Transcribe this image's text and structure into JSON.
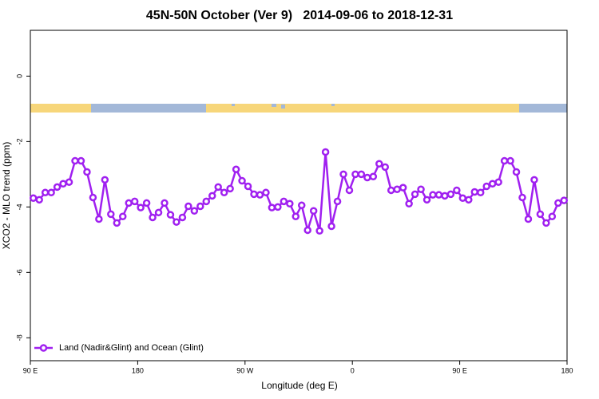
{
  "chart_data": {
    "type": "line",
    "title": "45N-50N October (Ver 9)   2014-09-06 to 2018-12-31",
    "x_label": "Longitude (deg E)",
    "y_label": "XCO2 - MLO trend (ppm)",
    "xlim": [
      90,
      540
    ],
    "ylim": [
      -8.7,
      1.4
    ],
    "xticks": [
      {
        "value": 90,
        "label": "90 E"
      },
      180,
      {
        "value": 270,
        "label": "90 W"
      },
      {
        "value": 360,
        "label": "0"
      },
      {
        "value": 450,
        "label": "90 E"
      },
      {
        "value": 540,
        "label": "180"
      }
    ],
    "yticks": [
      0,
      -2,
      -4,
      -6,
      -8
    ],
    "legend": "bottom-left",
    "x": [
      92.5,
      97.5,
      102.5,
      107.5,
      112.5,
      117.5,
      122.5,
      127.5,
      132.5,
      137.5,
      142.5,
      147.5,
      152.5,
      157.5,
      162.5,
      167.5,
      172.5,
      177.5,
      182.5,
      187.5,
      192.5,
      197.5,
      202.5,
      207.5,
      212.5,
      217.5,
      222.5,
      227.5,
      232.5,
      237.5,
      242.5,
      247.5,
      252.5,
      257.5,
      262.5,
      267.5,
      272.5,
      277.5,
      282.5,
      287.5,
      292.5,
      297.5,
      302.5,
      307.5,
      312.5,
      317.5,
      322.5,
      327.5,
      332.5,
      337.5,
      342.5,
      347.5,
      352.5,
      357.5,
      362.5,
      367.5,
      372.5,
      377.5,
      382.5,
      387.5,
      392.5,
      397.5,
      402.5,
      407.5,
      412.5,
      417.5,
      422.5,
      427.5,
      432.5,
      437.5,
      442.5,
      447.5,
      452.5,
      457.5,
      462.5,
      467.5,
      472.5,
      477.5,
      482.5,
      487.5,
      492.5,
      497.5,
      502.5,
      507.5,
      512.5,
      517.5,
      522.5,
      527.5,
      532.5,
      537.5
    ],
    "series": [
      {
        "name": "Land (Nadir&Glint) and Ocean (Glint)",
        "color": "#a020f0",
        "values": [
          -3.73,
          -3.78,
          -3.56,
          -3.56,
          -3.39,
          -3.29,
          -3.24,
          -2.59,
          -2.59,
          -2.93,
          -3.71,
          -4.37,
          -3.17,
          -4.22,
          -4.49,
          -4.29,
          -3.88,
          -3.83,
          -4.02,
          -3.88,
          -4.32,
          -4.17,
          -3.88,
          -4.24,
          -4.46,
          -4.32,
          -3.98,
          -4.12,
          -3.98,
          -3.83,
          -3.66,
          -3.39,
          -3.56,
          -3.44,
          -2.85,
          -3.2,
          -3.37,
          -3.61,
          -3.63,
          -3.56,
          -4.02,
          -4.0,
          -3.83,
          -3.9,
          -4.29,
          -3.95,
          -4.71,
          -4.12,
          -4.73,
          -2.32,
          -4.59,
          -3.83,
          -3.0,
          -3.49,
          -3.0,
          -3.0,
          -3.1,
          -3.07,
          -2.68,
          -2.78,
          -3.49,
          -3.46,
          -3.41,
          -3.9,
          -3.61,
          -3.46,
          -3.78,
          -3.63,
          -3.63,
          -3.66,
          -3.61,
          -3.49,
          -3.73,
          -3.78,
          -3.54,
          -3.56,
          -3.37,
          -3.29,
          -3.24,
          -2.59,
          -2.59,
          -2.93,
          -3.71,
          -4.37,
          -3.17,
          -4.22,
          -4.49,
          -4.29,
          -3.88,
          -3.8
        ]
      }
    ]
  }
}
